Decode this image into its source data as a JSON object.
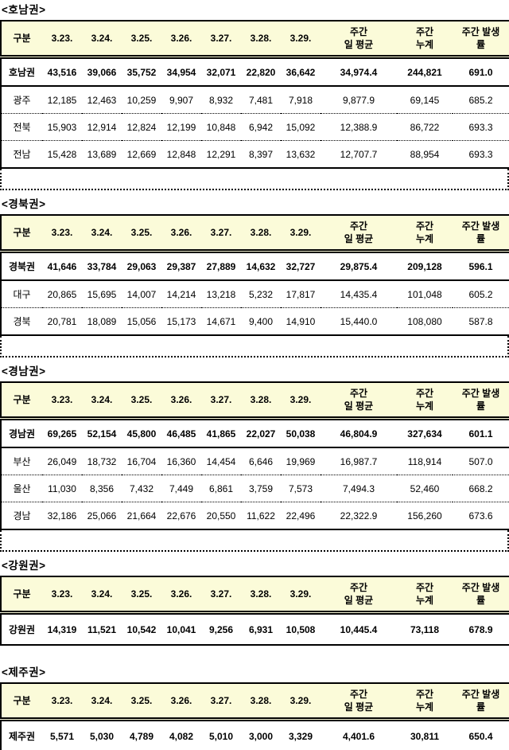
{
  "document": {
    "columns": [
      "구분",
      "3.23.",
      "3.24.",
      "3.25.",
      "3.26.",
      "3.27.",
      "3.28.",
      "3.29.",
      "주간\n일 평균",
      "주간\n누계",
      "주간 발생\n률"
    ],
    "header_bg_color": "#FBFBD9",
    "sections": [
      {
        "title": "<호남권>",
        "trailing_empty_row": true,
        "rows": [
          {
            "label": "호남권",
            "bold": true,
            "values": [
              "43,516",
              "39,066",
              "35,752",
              "34,954",
              "32,071",
              "22,820",
              "36,642",
              "34,974.4",
              "244,821",
              "691.0"
            ]
          },
          {
            "label": "광주",
            "bold": false,
            "values": [
              "12,185",
              "12,463",
              "10,259",
              "9,907",
              "8,932",
              "7,481",
              "7,918",
              "9,877.9",
              "69,145",
              "685.2"
            ]
          },
          {
            "label": "전북",
            "bold": false,
            "values": [
              "15,903",
              "12,914",
              "12,824",
              "12,199",
              "10,848",
              "6,942",
              "15,092",
              "12,388.9",
              "86,722",
              "693.3"
            ]
          },
          {
            "label": "전남",
            "bold": false,
            "values": [
              "15,428",
              "13,689",
              "12,669",
              "12,848",
              "12,291",
              "8,397",
              "13,632",
              "12,707.7",
              "88,954",
              "693.3"
            ]
          }
        ]
      },
      {
        "title": "<경북권>",
        "trailing_empty_row": true,
        "rows": [
          {
            "label": "경북권",
            "bold": true,
            "values": [
              "41,646",
              "33,784",
              "29,063",
              "29,387",
              "27,889",
              "14,632",
              "32,727",
              "29,875.4",
              "209,128",
              "596.1"
            ]
          },
          {
            "label": "대구",
            "bold": false,
            "values": [
              "20,865",
              "15,695",
              "14,007",
              "14,214",
              "13,218",
              "5,232",
              "17,817",
              "14,435.4",
              "101,048",
              "605.2"
            ]
          },
          {
            "label": "경북",
            "bold": false,
            "values": [
              "20,781",
              "18,089",
              "15,056",
              "15,173",
              "14,671",
              "9,400",
              "14,910",
              "15,440.0",
              "108,080",
              "587.8"
            ]
          }
        ]
      },
      {
        "title": "<경남권>",
        "trailing_empty_row": true,
        "rows": [
          {
            "label": "경남권",
            "bold": true,
            "values": [
              "69,265",
              "52,154",
              "45,800",
              "46,485",
              "41,865",
              "22,027",
              "50,038",
              "46,804.9",
              "327,634",
              "601.1"
            ]
          },
          {
            "label": "부산",
            "bold": false,
            "values": [
              "26,049",
              "18,732",
              "16,704",
              "16,360",
              "14,454",
              "6,646",
              "19,969",
              "16,987.7",
              "118,914",
              "507.0"
            ]
          },
          {
            "label": "울산",
            "bold": false,
            "values": [
              "11,030",
              "8,356",
              "7,432",
              "7,449",
              "6,861",
              "3,759",
              "7,573",
              "7,494.3",
              "52,460",
              "668.2"
            ]
          },
          {
            "label": "경남",
            "bold": false,
            "values": [
              "32,186",
              "25,066",
              "21,664",
              "22,676",
              "20,550",
              "11,622",
              "22,496",
              "22,322.9",
              "156,260",
              "673.6"
            ]
          }
        ]
      },
      {
        "title": "<강원권>",
        "trailing_empty_row": false,
        "rows": [
          {
            "label": "강원권",
            "bold": true,
            "values": [
              "14,319",
              "11,521",
              "10,542",
              "10,041",
              "9,256",
              "6,931",
              "10,508",
              "10,445.4",
              "73,118",
              "678.9"
            ]
          }
        ]
      },
      {
        "title": "<제주권>",
        "trailing_empty_row": false,
        "extra_gap_before": true,
        "rows": [
          {
            "label": "제주권",
            "bold": true,
            "values": [
              "5,571",
              "5,030",
              "4,789",
              "4,082",
              "5,010",
              "3,000",
              "3,329",
              "4,401.6",
              "30,811",
              "650.4"
            ]
          }
        ]
      }
    ]
  }
}
